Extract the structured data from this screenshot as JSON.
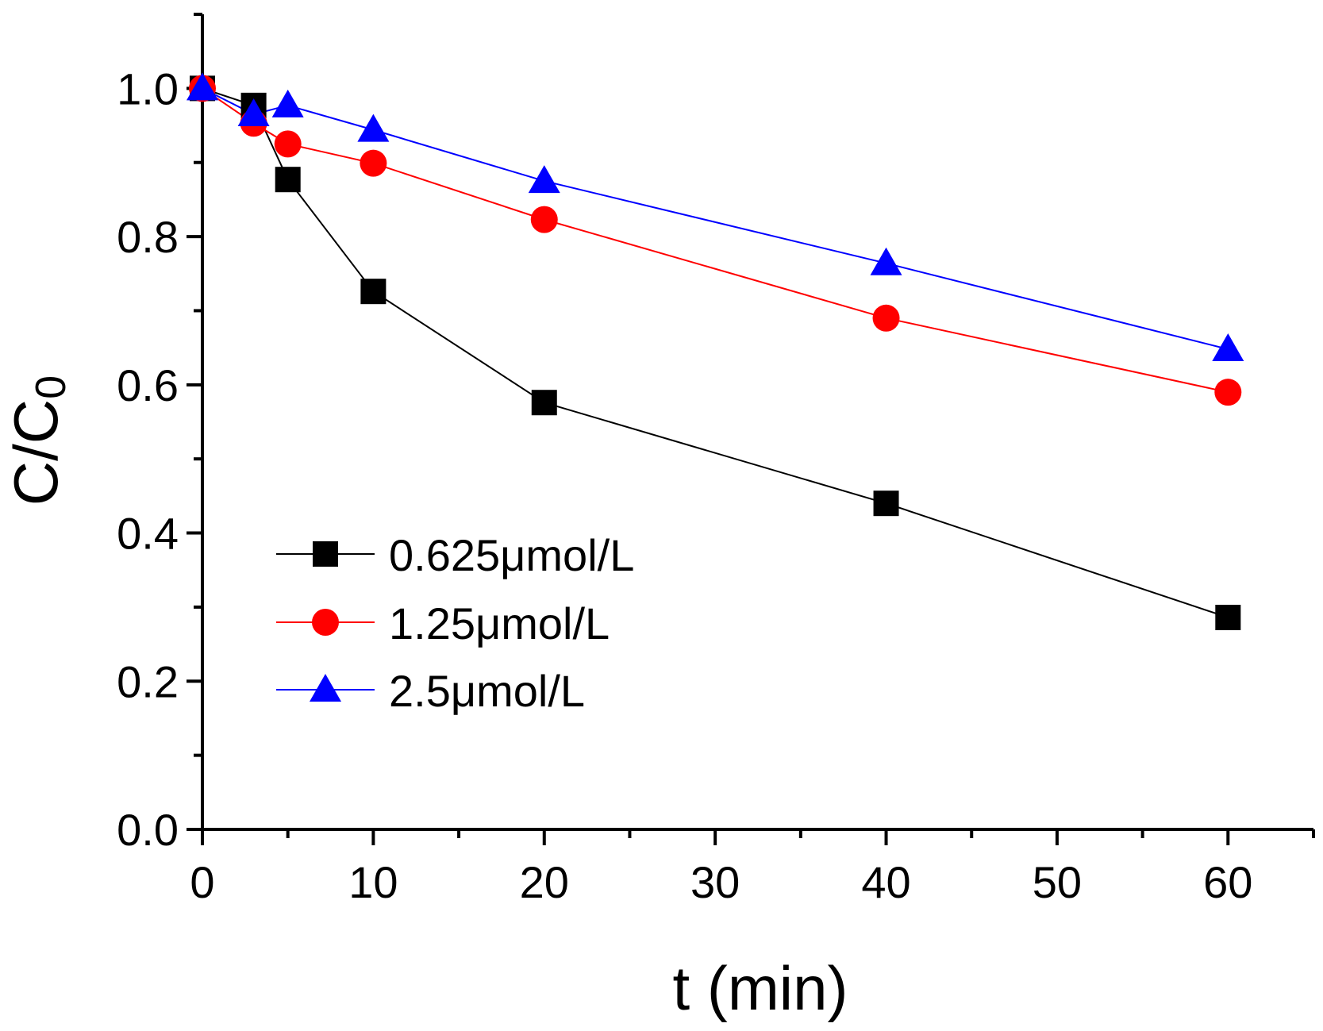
{
  "chart_data": {
    "type": "line",
    "title": "",
    "xlabel": "t (min)",
    "ylabel_main": "C/C",
    "ylabel_sub": "0",
    "xlim": [
      0,
      65
    ],
    "ylim": [
      0,
      1.1
    ],
    "x_ticks": [
      0,
      10,
      20,
      30,
      40,
      50,
      60
    ],
    "x_tick_labels": [
      "0",
      "10",
      "20",
      "30",
      "40",
      "50",
      "60"
    ],
    "y_ticks": [
      0.0,
      0.2,
      0.4,
      0.6,
      0.8,
      1.0
    ],
    "y_tick_labels": [
      "0.0",
      "0.2",
      "0.4",
      "0.6",
      "0.8",
      "1.0"
    ],
    "grid": false,
    "legend_position": "center-left",
    "series": [
      {
        "name": "0.625μmol/L",
        "color": "#000000",
        "marker": "square",
        "x": [
          0,
          3,
          5,
          10,
          20,
          40,
          60
        ],
        "y": [
          1.0,
          0.977,
          0.877,
          0.726,
          0.576,
          0.44,
          0.286
        ]
      },
      {
        "name": "1.25μmol/L",
        "color": "#ff0000",
        "marker": "circle",
        "x": [
          0,
          3,
          5,
          10,
          20,
          40,
          60
        ],
        "y": [
          1.0,
          0.953,
          0.925,
          0.899,
          0.823,
          0.69,
          0.59
        ]
      },
      {
        "name": "2.5μmol/L",
        "color": "#0000ff",
        "marker": "triangle",
        "x": [
          0,
          3,
          5,
          10,
          20,
          40,
          60
        ],
        "y": [
          1.0,
          0.965,
          0.977,
          0.944,
          0.875,
          0.764,
          0.648
        ]
      }
    ]
  }
}
